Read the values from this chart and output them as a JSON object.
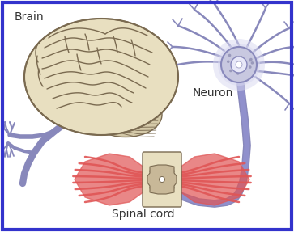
{
  "background_color": "#ffffff",
  "border_color": "#3333cc",
  "border_width": 3,
  "brain_color": "#e8dfc0",
  "brain_outline_color": "#7a6a50",
  "cerebellum_color": "#d4c9a8",
  "neuron_cell_color": "#c8c8e0",
  "neuron_glow_color": "#d8d8f0",
  "neuron_nucleus_color": "#ffffff",
  "dendrite_color": "#8888bb",
  "axon_color": "#9090cc",
  "spinal_cord_body_color": "#e8dfc0",
  "spinal_cord_nerve_color": "#e05555",
  "spinal_cord_gray_color": "#c8b898",
  "nerve_line_color": "#e05555",
  "label_brain": "Brain",
  "label_neuron": "Neuron",
  "label_spinal": "Spinal cord",
  "label_color": "#333333",
  "label_fontsize": 10,
  "figsize": [
    3.63,
    2.87
  ],
  "dpi": 100
}
